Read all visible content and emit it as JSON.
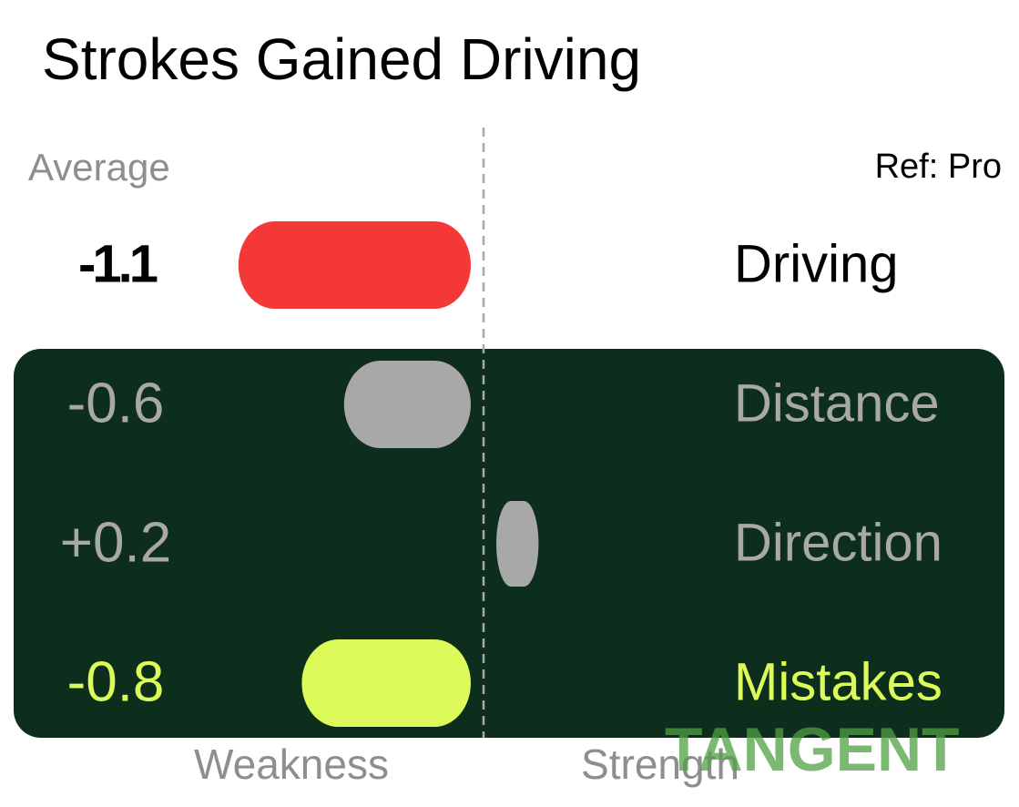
{
  "chart_data": {
    "type": "bar",
    "title": "Strokes Gained Driving",
    "subtitle": "Average",
    "reference": "Ref: Pro",
    "categories": [
      "Driving",
      "Distance",
      "Direction",
      "Mistakes"
    ],
    "values": [
      -1.1,
      -0.6,
      0.2,
      -0.8
    ],
    "value_labels": [
      "-1.1",
      "-0.6",
      "+0.2",
      "-0.8"
    ],
    "colors": [
      "#f43838",
      "#a8a8a8",
      "#a8a8a8",
      "#dcfa5a"
    ],
    "label_colors": [
      "#000000",
      "#a8a8a8",
      "#a8a8a8",
      "#dcfa5a"
    ],
    "negative_label": "Weakness",
    "positive_label": "Strength",
    "watermark": "TANGENT"
  }
}
